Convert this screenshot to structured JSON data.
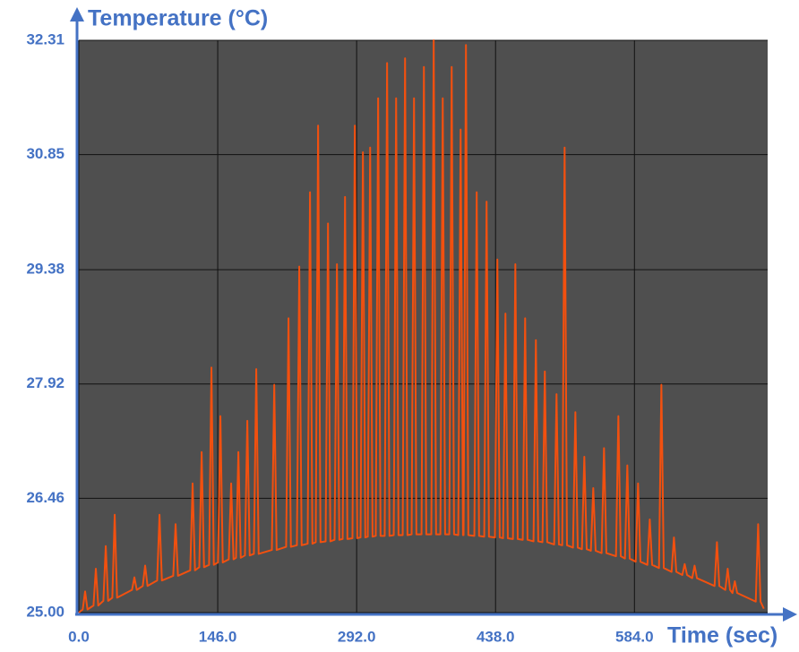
{
  "chart_data": {
    "type": "line",
    "y_label": "Temperature (°C)",
    "x_label": "Time (sec)",
    "color": "#f2500f",
    "xlim": [
      0,
      724
    ],
    "ylim": [
      25,
      32.31
    ],
    "xticks": [
      {
        "value": 0,
        "label": "0.0"
      },
      {
        "value": 146,
        "label": "146.0"
      },
      {
        "value": 292,
        "label": "292.0"
      },
      {
        "value": 438,
        "label": "438.0"
      },
      {
        "value": 584,
        "label": "584.0"
      }
    ],
    "yticks": [
      {
        "value": 25,
        "label": "25.00"
      },
      26.46,
      27.92,
      29.38,
      30.85,
      32.31
    ],
    "grid": true,
    "x": [
      0,
      4.1,
      6.6,
      9.1,
      15.4,
      17.9,
      20.4,
      25.8,
      28.3,
      30.8,
      35.2,
      37.7,
      40.2,
      55.9,
      58.4,
      60.9,
      67.2,
      69.7,
      72.2,
      82.3,
      84.8,
      87.3,
      99.2,
      101.7,
      104.2,
      117.1,
      119.6,
      122.1,
      126.6,
      129.1,
      131.6,
      136.9,
      139.4,
      141.9,
      146.3,
      148.8,
      151.3,
      157.6,
      160.1,
      162.6,
      165.2,
      167.7,
      170.2,
      174.6,
      177.1,
      179.6,
      184.0,
      186.5,
      189.0,
      202.9,
      205.4,
      207.9,
      217.9,
      220.4,
      222.9,
      229.2,
      231.7,
      234.2,
      240.5,
      243.0,
      245.5,
      249.0,
      251.5,
      254.0,
      259.4,
      261.9,
      264.4,
      268.8,
      271.3,
      273.8,
      277.3,
      279.8,
      282.3,
      287.6,
      290.1,
      292.6,
      296.1,
      298.6,
      301.1,
      303.7,
      306.2,
      308.7,
      312.1,
      314.6,
      317.1,
      321.5,
      324.0,
      326.5,
      331.0,
      333.5,
      336.0,
      340.4,
      342.9,
      345.4,
      349.8,
      352.3,
      354.8,
      360.2,
      362.7,
      365.2,
      370.5,
      373.0,
      375.5,
      380.0,
      382.5,
      385.0,
      389.4,
      391.9,
      394.4,
      398.8,
      401.3,
      403.8,
      404.4,
      406.9,
      409.4,
      415.7,
      418.2,
      420.7,
      426.1,
      428.6,
      431.1,
      437.4,
      439.9,
      442.4,
      445.9,
      448.4,
      450.9,
      456.3,
      458.8,
      461.3,
      466.6,
      469.1,
      471.6,
      477.9,
      480.4,
      482.9,
      487.3,
      489.8,
      492.3,
      499.6,
      502.1,
      504.6,
      508.1,
      510.6,
      513.1,
      519.4,
      521.9,
      524.4,
      528.8,
      531.3,
      533.8,
      538.2,
      540.7,
      543.2,
      549.5,
      552.0,
      554.5,
      564.6,
      567.1,
      569.6,
      574.0,
      576.5,
      579.0,
      585.3,
      587.8,
      590.3,
      597.6,
      600.1,
      602.6,
      609.8,
      612.3,
      614.8,
      623.0,
      625.5,
      628.0,
      634.3,
      636.8,
      639.3,
      644.7,
      647.2,
      649.7,
      668.2,
      670.7,
      673.2,
      679.5,
      682.0,
      684.5,
      687.0,
      689.5,
      692.0,
      711.5,
      714.0,
      716.5,
      720
    ],
    "values": [
      25.0,
      25.04,
      25.27,
      25.04,
      25.09,
      25.56,
      25.09,
      25.15,
      25.85,
      25.15,
      25.19,
      26.25,
      25.19,
      25.29,
      25.45,
      25.29,
      25.34,
      25.6,
      25.34,
      25.41,
      26.25,
      25.41,
      25.47,
      26.13,
      25.47,
      25.54,
      26.65,
      25.54,
      25.58,
      27.05,
      25.58,
      25.61,
      28.13,
      25.61,
      25.64,
      27.51,
      25.64,
      25.68,
      26.65,
      25.68,
      25.7,
      27.05,
      25.7,
      25.73,
      27.45,
      25.73,
      25.75,
      28.11,
      25.75,
      25.8,
      27.91,
      25.8,
      25.84,
      28.76,
      25.84,
      25.86,
      29.42,
      25.86,
      25.88,
      30.37,
      25.88,
      25.9,
      31.22,
      25.9,
      25.91,
      29.97,
      25.91,
      25.93,
      29.45,
      25.93,
      25.94,
      30.31,
      25.94,
      25.95,
      31.22,
      25.95,
      25.96,
      30.88,
      25.96,
      25.97,
      30.94,
      25.97,
      25.98,
      31.57,
      25.98,
      25.98,
      32.02,
      25.98,
      25.99,
      31.57,
      25.99,
      25.99,
      32.08,
      25.99,
      26.0,
      31.57,
      26.0,
      26.0,
      31.97,
      26.0,
      26.0,
      32.31,
      26.0,
      26.0,
      31.57,
      26.0,
      26.0,
      31.97,
      26.0,
      25.99,
      31.17,
      25.99,
      25.99,
      32.25,
      25.99,
      25.98,
      30.37,
      25.98,
      25.97,
      30.25,
      25.97,
      25.96,
      29.51,
      25.96,
      25.95,
      28.82,
      25.95,
      25.94,
      29.45,
      25.94,
      25.93,
      28.76,
      25.93,
      25.91,
      28.48,
      25.91,
      25.9,
      28.08,
      25.9,
      25.87,
      27.79,
      25.87,
      25.86,
      30.94,
      25.86,
      25.83,
      27.56,
      25.83,
      25.81,
      26.99,
      25.81,
      25.79,
      26.59,
      25.79,
      25.76,
      27.1,
      25.76,
      25.72,
      27.51,
      25.72,
      25.69,
      26.88,
      25.69,
      25.65,
      26.65,
      25.65,
      25.61,
      26.19,
      25.61,
      25.57,
      27.91,
      25.57,
      25.52,
      25.96,
      25.52,
      25.48,
      25.62,
      25.48,
      25.44,
      25.6,
      25.44,
      25.34,
      25.9,
      25.34,
      25.29,
      25.56,
      25.29,
      25.25,
      25.4,
      25.25,
      25.14,
      26.13,
      25.14,
      25.05
    ]
  }
}
